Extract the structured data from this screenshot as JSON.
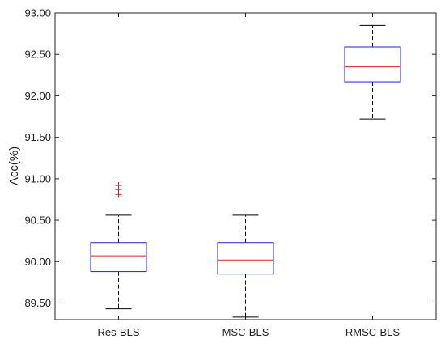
{
  "chart_data": {
    "type": "box",
    "title": "",
    "xlabel": "",
    "ylabel": "Acc(%)",
    "ylim": [
      89.3,
      93.0
    ],
    "yticks": [
      "89.50",
      "90.00",
      "90.50",
      "91.00",
      "91.50",
      "92.00",
      "92.50",
      "93.00"
    ],
    "categories": [
      "Res-BLS",
      "MSC-BLS",
      "RMSC-BLS"
    ],
    "grid": false,
    "legend": "none",
    "colors": {
      "box": "#1f1fe0",
      "median": "#e02020",
      "outlier": "#e02020",
      "whisker": "#000000",
      "axis": "#222222"
    },
    "boxes": [
      {
        "category": "Res-BLS",
        "whisker_low": 89.43,
        "q1": 89.88,
        "median": 90.07,
        "q3": 90.23,
        "whisker_high": 90.56,
        "outliers": [
          90.81,
          90.87,
          90.92
        ]
      },
      {
        "category": "MSC-BLS",
        "whisker_low": 89.33,
        "q1": 89.85,
        "median": 90.02,
        "q3": 90.23,
        "whisker_high": 90.56,
        "outliers": []
      },
      {
        "category": "RMSC-BLS",
        "whisker_low": 91.72,
        "q1": 92.17,
        "median": 92.35,
        "q3": 92.59,
        "whisker_high": 92.85,
        "outliers": []
      }
    ]
  }
}
